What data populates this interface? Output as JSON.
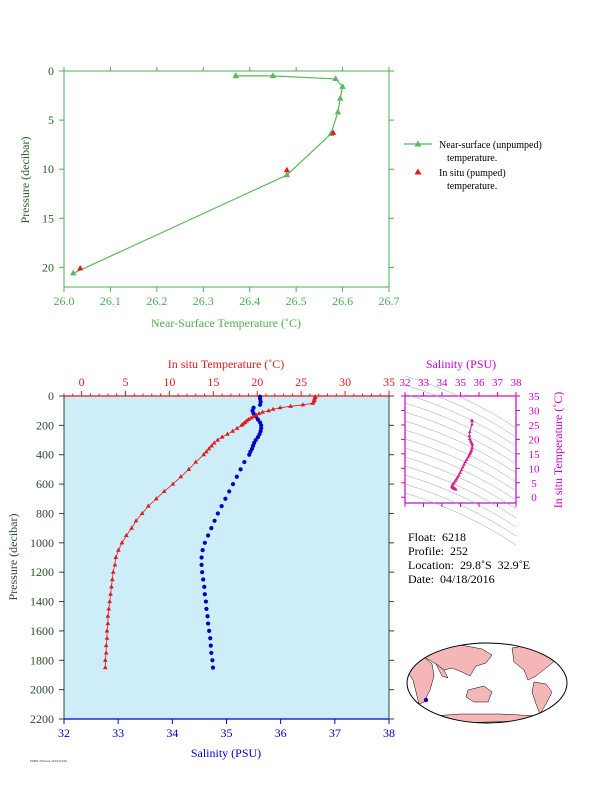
{
  "chart_data": [
    {
      "type": "line",
      "id": "near-surface",
      "xlabel": "Near-Surface Temperature (˚C)",
      "ylabel": "Pressure (decibar)",
      "xlim": [
        26.0,
        26.7
      ],
      "ylim": [
        0,
        22
      ],
      "y_inverted": true,
      "xticks": [
        "26.0",
        "26.1",
        "26.2",
        "26.3",
        "26.4",
        "26.5",
        "26.6",
        "26.7"
      ],
      "yticks": [
        "0",
        "5",
        "10",
        "15",
        "20"
      ],
      "colors": {
        "axis": "#4caf50",
        "near": "#5cb85c",
        "insitu": "#e31a1c"
      },
      "legend": [
        {
          "label": "Near-surface (unpumped)",
          "label2": "temperature."
        },
        {
          "label": "In situ (pumped)",
          "label2": "temperature."
        }
      ],
      "series": [
        {
          "name": "Near-surface (unpumped) temperature.",
          "x": [
            26.37,
            26.37,
            26.45,
            26.585,
            26.6,
            26.595,
            26.59,
            26.575,
            26.48,
            26.02
          ],
          "y": [
            0.5,
            0.5,
            0.5,
            0.8,
            1.6,
            2.8,
            4.2,
            6.4,
            10.6,
            20.6
          ]
        },
        {
          "name": "In situ (pumped) temperature.",
          "x": [
            26.58,
            26.48,
            26.035
          ],
          "y": [
            6.3,
            10.1,
            20.1
          ]
        }
      ]
    },
    {
      "type": "scatter",
      "id": "profile",
      "ylabel": "Pressure (decibar)",
      "xlabel_top": "In situ Temperature (˚C)",
      "xlabel_bottom": "Salinity (PSU)",
      "temp_lim": [
        -2,
        35
      ],
      "sal_lim": [
        32,
        38
      ],
      "ylim": [
        0,
        2200
      ],
      "y_inverted": true,
      "temp_ticks": [
        "0",
        "5",
        "10",
        "15",
        "20",
        "25",
        "30",
        "35"
      ],
      "sal_ticks": [
        "32",
        "33",
        "34",
        "35",
        "36",
        "37",
        "38"
      ],
      "yticks": [
        "0",
        "200",
        "400",
        "600",
        "800",
        "1000",
        "1200",
        "1400",
        "1600",
        "1800",
        "2000",
        "2200"
      ],
      "colors": {
        "temp": "#e31a1c",
        "sal": "#0000cc",
        "bg": "#cdeef8",
        "axis": "#2e4a2e"
      },
      "temperature": {
        "p": [
          5,
          10,
          20,
          30,
          40,
          50,
          60,
          70,
          80,
          90,
          100,
          110,
          120,
          130,
          140,
          150,
          160,
          170,
          180,
          190,
          200,
          220,
          240,
          260,
          280,
          300,
          320,
          340,
          360,
          380,
          400,
          450,
          500,
          550,
          600,
          650,
          700,
          750,
          800,
          850,
          900,
          950,
          1000,
          1050,
          1100,
          1150,
          1200,
          1250,
          1300,
          1350,
          1400,
          1450,
          1500,
          1550,
          1600,
          1650,
          1700,
          1750,
          1800,
          1850
        ],
        "t": [
          26.6,
          26.6,
          26.5,
          26.5,
          26.4,
          26.3,
          25.2,
          23.8,
          22.6,
          21.8,
          21.3,
          20.6,
          20.2,
          19.9,
          19.6,
          19.3,
          19.0,
          18.8,
          18.6,
          18.4,
          18.2,
          17.7,
          17.2,
          16.6,
          16.0,
          15.5,
          15.1,
          14.8,
          14.5,
          14.2,
          13.9,
          13.0,
          12.2,
          11.3,
          10.4,
          9.4,
          8.5,
          7.6,
          6.9,
          6.2,
          5.7,
          5.1,
          4.6,
          4.2,
          3.9,
          3.8,
          3.6,
          3.5,
          3.4,
          3.3,
          3.2,
          3.1,
          3.0,
          3.0,
          2.9,
          2.9,
          2.8,
          2.8,
          2.7,
          2.7
        ]
      },
      "salinity": {
        "p": [
          5,
          20,
          40,
          60,
          80,
          100,
          120,
          140,
          160,
          180,
          200,
          220,
          240,
          260,
          280,
          300,
          320,
          340,
          360,
          380,
          400,
          450,
          500,
          550,
          600,
          650,
          700,
          750,
          800,
          850,
          900,
          950,
          1000,
          1050,
          1100,
          1150,
          1200,
          1250,
          1300,
          1350,
          1400,
          1450,
          1500,
          1550,
          1600,
          1650,
          1700,
          1750,
          1800,
          1850
        ],
        "s": [
          35.62,
          35.62,
          35.63,
          35.62,
          35.5,
          35.48,
          35.5,
          35.54,
          35.58,
          35.62,
          35.64,
          35.64,
          35.63,
          35.61,
          35.58,
          35.54,
          35.51,
          35.49,
          35.47,
          35.44,
          35.42,
          35.33,
          35.26,
          35.19,
          35.12,
          35.05,
          34.98,
          34.91,
          34.84,
          34.78,
          34.72,
          34.66,
          34.6,
          34.56,
          34.54,
          34.54,
          34.55,
          34.57,
          34.59,
          34.6,
          34.62,
          34.63,
          34.65,
          34.66,
          34.68,
          34.7,
          34.71,
          34.72,
          34.74,
          34.75
        ]
      }
    },
    {
      "type": "scatter",
      "id": "ts-diagram",
      "xlabel": "Salinity (PSU)",
      "ylabel": "In situ Temperature (˚C)",
      "xlim": [
        32,
        38
      ],
      "ylim": [
        -2,
        35
      ],
      "xticks": [
        "32",
        "33",
        "34",
        "35",
        "36",
        "37",
        "38"
      ],
      "yticks": [
        "0",
        "5",
        "10",
        "15",
        "20",
        "25",
        "30",
        "35"
      ],
      "colors": {
        "axis": "#cc00cc",
        "points": "#d6208a",
        "contour": "#8fa5b5"
      },
      "points_ts": {
        "s": [
          35.62,
          35.62,
          35.63,
          35.62,
          35.5,
          35.48,
          35.5,
          35.54,
          35.58,
          35.62,
          35.64,
          35.63,
          35.61,
          35.58,
          35.54,
          35.51,
          35.47,
          35.42,
          35.33,
          35.26,
          35.19,
          35.12,
          35.05,
          34.98,
          34.91,
          34.84,
          34.78,
          34.72,
          34.66,
          34.6,
          34.56,
          34.54,
          34.55,
          34.57,
          34.6,
          34.63,
          34.66,
          34.7,
          34.72,
          34.75
        ],
        "t": [
          26.6,
          26.5,
          26.4,
          25.2,
          22.6,
          21.3,
          20.2,
          19.6,
          19.0,
          18.6,
          18.2,
          17.2,
          16.6,
          16.0,
          15.5,
          15.1,
          14.5,
          13.9,
          13.0,
          12.2,
          11.3,
          10.4,
          9.4,
          8.5,
          7.6,
          6.9,
          6.2,
          5.7,
          5.1,
          4.6,
          4.2,
          3.8,
          3.6,
          3.4,
          3.2,
          3.1,
          3.0,
          2.9,
          2.8,
          2.7
        ]
      }
    }
  ],
  "float_info": {
    "float": "Float:  6218",
    "profile": "Profile:  252",
    "location": "Location:  29.8˚S  32.9˚E",
    "date": "Date:  04/18/2016"
  },
  "map": {
    "colors": {
      "ocean": "#ffffff",
      "land": "#f4b6b6",
      "marker": "#0000cc"
    }
  },
  "footnote": "PMEL/NOAA 2016/04/20"
}
